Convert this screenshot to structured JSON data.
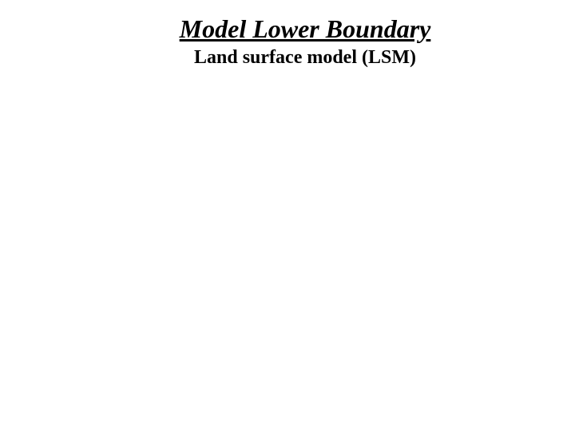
{
  "slide": {
    "title": "Model Lower Boundary",
    "subtitle": "Land surface model (LSM)",
    "title_fontsize": 32,
    "subtitle_fontsize": 24,
    "title_color": "#000000",
    "subtitle_color": "#000000",
    "background_color": "#ffffff",
    "font_family": "Times New Roman"
  }
}
